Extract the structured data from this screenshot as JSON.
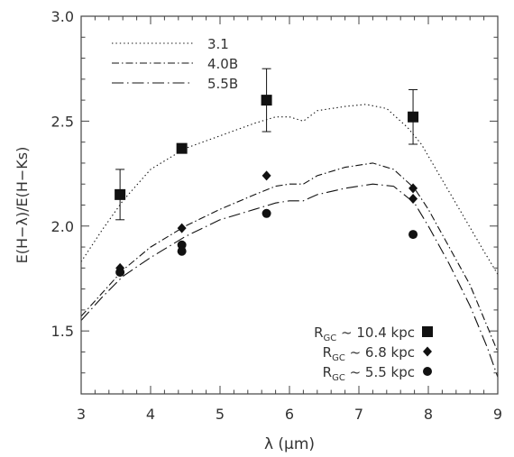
{
  "chart_data": {
    "type": "scatter",
    "xlabel": "λ (μm)",
    "ylabel": "E(H−λ)/E(H−Ks)",
    "xlim": [
      3,
      9
    ],
    "ylim": [
      1.2,
      3.0
    ],
    "x_ticks": [
      3,
      4,
      5,
      6,
      7,
      8,
      9
    ],
    "y_ticks": [
      1.5,
      2.0,
      2.5,
      3.0
    ],
    "x_tick_labels": [
      "3",
      "4",
      "5",
      "6",
      "7",
      "8",
      "9"
    ],
    "y_tick_labels": [
      "1.5",
      "2.0",
      "2.5",
      "3.0"
    ],
    "grid": false,
    "curve_legend_placement": "top-left",
    "point_legend_placement": "bottom-right",
    "curves": [
      {
        "name": "3.1",
        "style": "dotted",
        "points": [
          [
            3.0,
            1.83
          ],
          [
            3.3,
            1.98
          ],
          [
            3.6,
            2.12
          ],
          [
            4.0,
            2.27
          ],
          [
            4.5,
            2.37
          ],
          [
            5.0,
            2.43
          ],
          [
            5.5,
            2.49
          ],
          [
            5.8,
            2.52
          ],
          [
            6.0,
            2.52
          ],
          [
            6.2,
            2.5
          ],
          [
            6.4,
            2.55
          ],
          [
            6.8,
            2.57
          ],
          [
            7.1,
            2.58
          ],
          [
            7.4,
            2.56
          ],
          [
            7.7,
            2.47
          ],
          [
            7.9,
            2.39
          ],
          [
            8.2,
            2.22
          ],
          [
            8.5,
            2.05
          ],
          [
            8.8,
            1.88
          ],
          [
            9.0,
            1.77
          ]
        ]
      },
      {
        "name": "4.0B",
        "style": "dash-dot",
        "points": [
          [
            3.0,
            1.57
          ],
          [
            3.3,
            1.68
          ],
          [
            3.6,
            1.79
          ],
          [
            4.0,
            1.9
          ],
          [
            4.5,
            2.0
          ],
          [
            5.0,
            2.08
          ],
          [
            5.5,
            2.15
          ],
          [
            5.8,
            2.19
          ],
          [
            6.0,
            2.2
          ],
          [
            6.2,
            2.2
          ],
          [
            6.4,
            2.24
          ],
          [
            6.8,
            2.28
          ],
          [
            7.2,
            2.3
          ],
          [
            7.5,
            2.27
          ],
          [
            7.8,
            2.18
          ],
          [
            8.0,
            2.08
          ],
          [
            8.3,
            1.9
          ],
          [
            8.6,
            1.72
          ],
          [
            8.85,
            1.52
          ],
          [
            9.0,
            1.4
          ]
        ]
      },
      {
        "name": "5.5B",
        "style": "long-dash-dot",
        "points": [
          [
            3.0,
            1.55
          ],
          [
            3.3,
            1.66
          ],
          [
            3.6,
            1.76
          ],
          [
            4.0,
            1.85
          ],
          [
            4.5,
            1.95
          ],
          [
            5.0,
            2.03
          ],
          [
            5.5,
            2.08
          ],
          [
            5.8,
            2.11
          ],
          [
            6.0,
            2.12
          ],
          [
            6.2,
            2.12
          ],
          [
            6.4,
            2.15
          ],
          [
            6.8,
            2.18
          ],
          [
            7.2,
            2.2
          ],
          [
            7.5,
            2.19
          ],
          [
            7.8,
            2.11
          ],
          [
            8.0,
            2.0
          ],
          [
            8.3,
            1.82
          ],
          [
            8.6,
            1.62
          ],
          [
            8.85,
            1.42
          ],
          [
            9.0,
            1.28
          ]
        ]
      }
    ],
    "series": [
      {
        "name": "R_GC ~ 10.4 kpc",
        "marker": "square",
        "points": [
          {
            "x": 3.56,
            "y": 2.15,
            "err": 0.12
          },
          {
            "x": 4.45,
            "y": 2.37,
            "err": null
          },
          {
            "x": 5.67,
            "y": 2.6,
            "err": 0.15
          },
          {
            "x": 7.78,
            "y": 2.52,
            "err": 0.13
          }
        ]
      },
      {
        "name": "R_GC ~ 6.8 kpc",
        "marker": "diamond",
        "points": [
          {
            "x": 3.56,
            "y": 1.8
          },
          {
            "x": 4.45,
            "y": 1.99
          },
          {
            "x": 5.67,
            "y": 2.24
          },
          {
            "x": 7.78,
            "y": 2.18
          },
          {
            "x": 7.78,
            "y": 2.13
          }
        ]
      },
      {
        "name": "R_GC ~ 5.5 kpc",
        "marker": "circle",
        "points": [
          {
            "x": 3.56,
            "y": 1.78
          },
          {
            "x": 4.45,
            "y": 1.91
          },
          {
            "x": 4.45,
            "y": 1.88
          },
          {
            "x": 5.67,
            "y": 2.06
          },
          {
            "x": 7.78,
            "y": 1.96
          }
        ]
      }
    ],
    "curve_legend": [
      {
        "label": "3.1",
        "style": "dotted"
      },
      {
        "label": "4.0B",
        "style": "dash-dot"
      },
      {
        "label": "5.5B",
        "style": "long-dash-dot"
      }
    ],
    "point_legend": [
      {
        "prefix": "R",
        "sub": "GC",
        "text": "~ 10.4 kpc",
        "marker": "square"
      },
      {
        "prefix": "R",
        "sub": "GC",
        "text": "~ 6.8 kpc",
        "marker": "diamond"
      },
      {
        "prefix": "R",
        "sub": "GC",
        "text": "~ 5.5 kpc",
        "marker": "circle"
      }
    ],
    "colors": {
      "axes": "#444444",
      "data": "#111111",
      "text": "#333333"
    }
  }
}
